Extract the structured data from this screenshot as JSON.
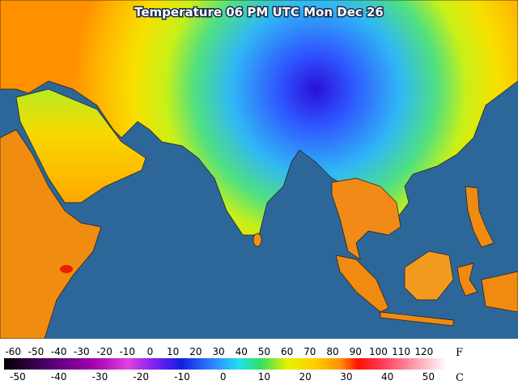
{
  "title": "Temperature 06 PM UTC Mon Dec 26",
  "legend": {
    "fahrenheit_unit": "F",
    "celsius_unit": "C",
    "range_f": [
      -64,
      130
    ],
    "fahrenheit_ticks": [
      -60,
      -50,
      -40,
      -30,
      -20,
      -10,
      0,
      10,
      20,
      30,
      40,
      50,
      60,
      70,
      80,
      90,
      100,
      110,
      120
    ],
    "celsius_ticks": [
      -50,
      -40,
      -30,
      -20,
      -10,
      0,
      10,
      20,
      30,
      40,
      50
    ]
  }
}
